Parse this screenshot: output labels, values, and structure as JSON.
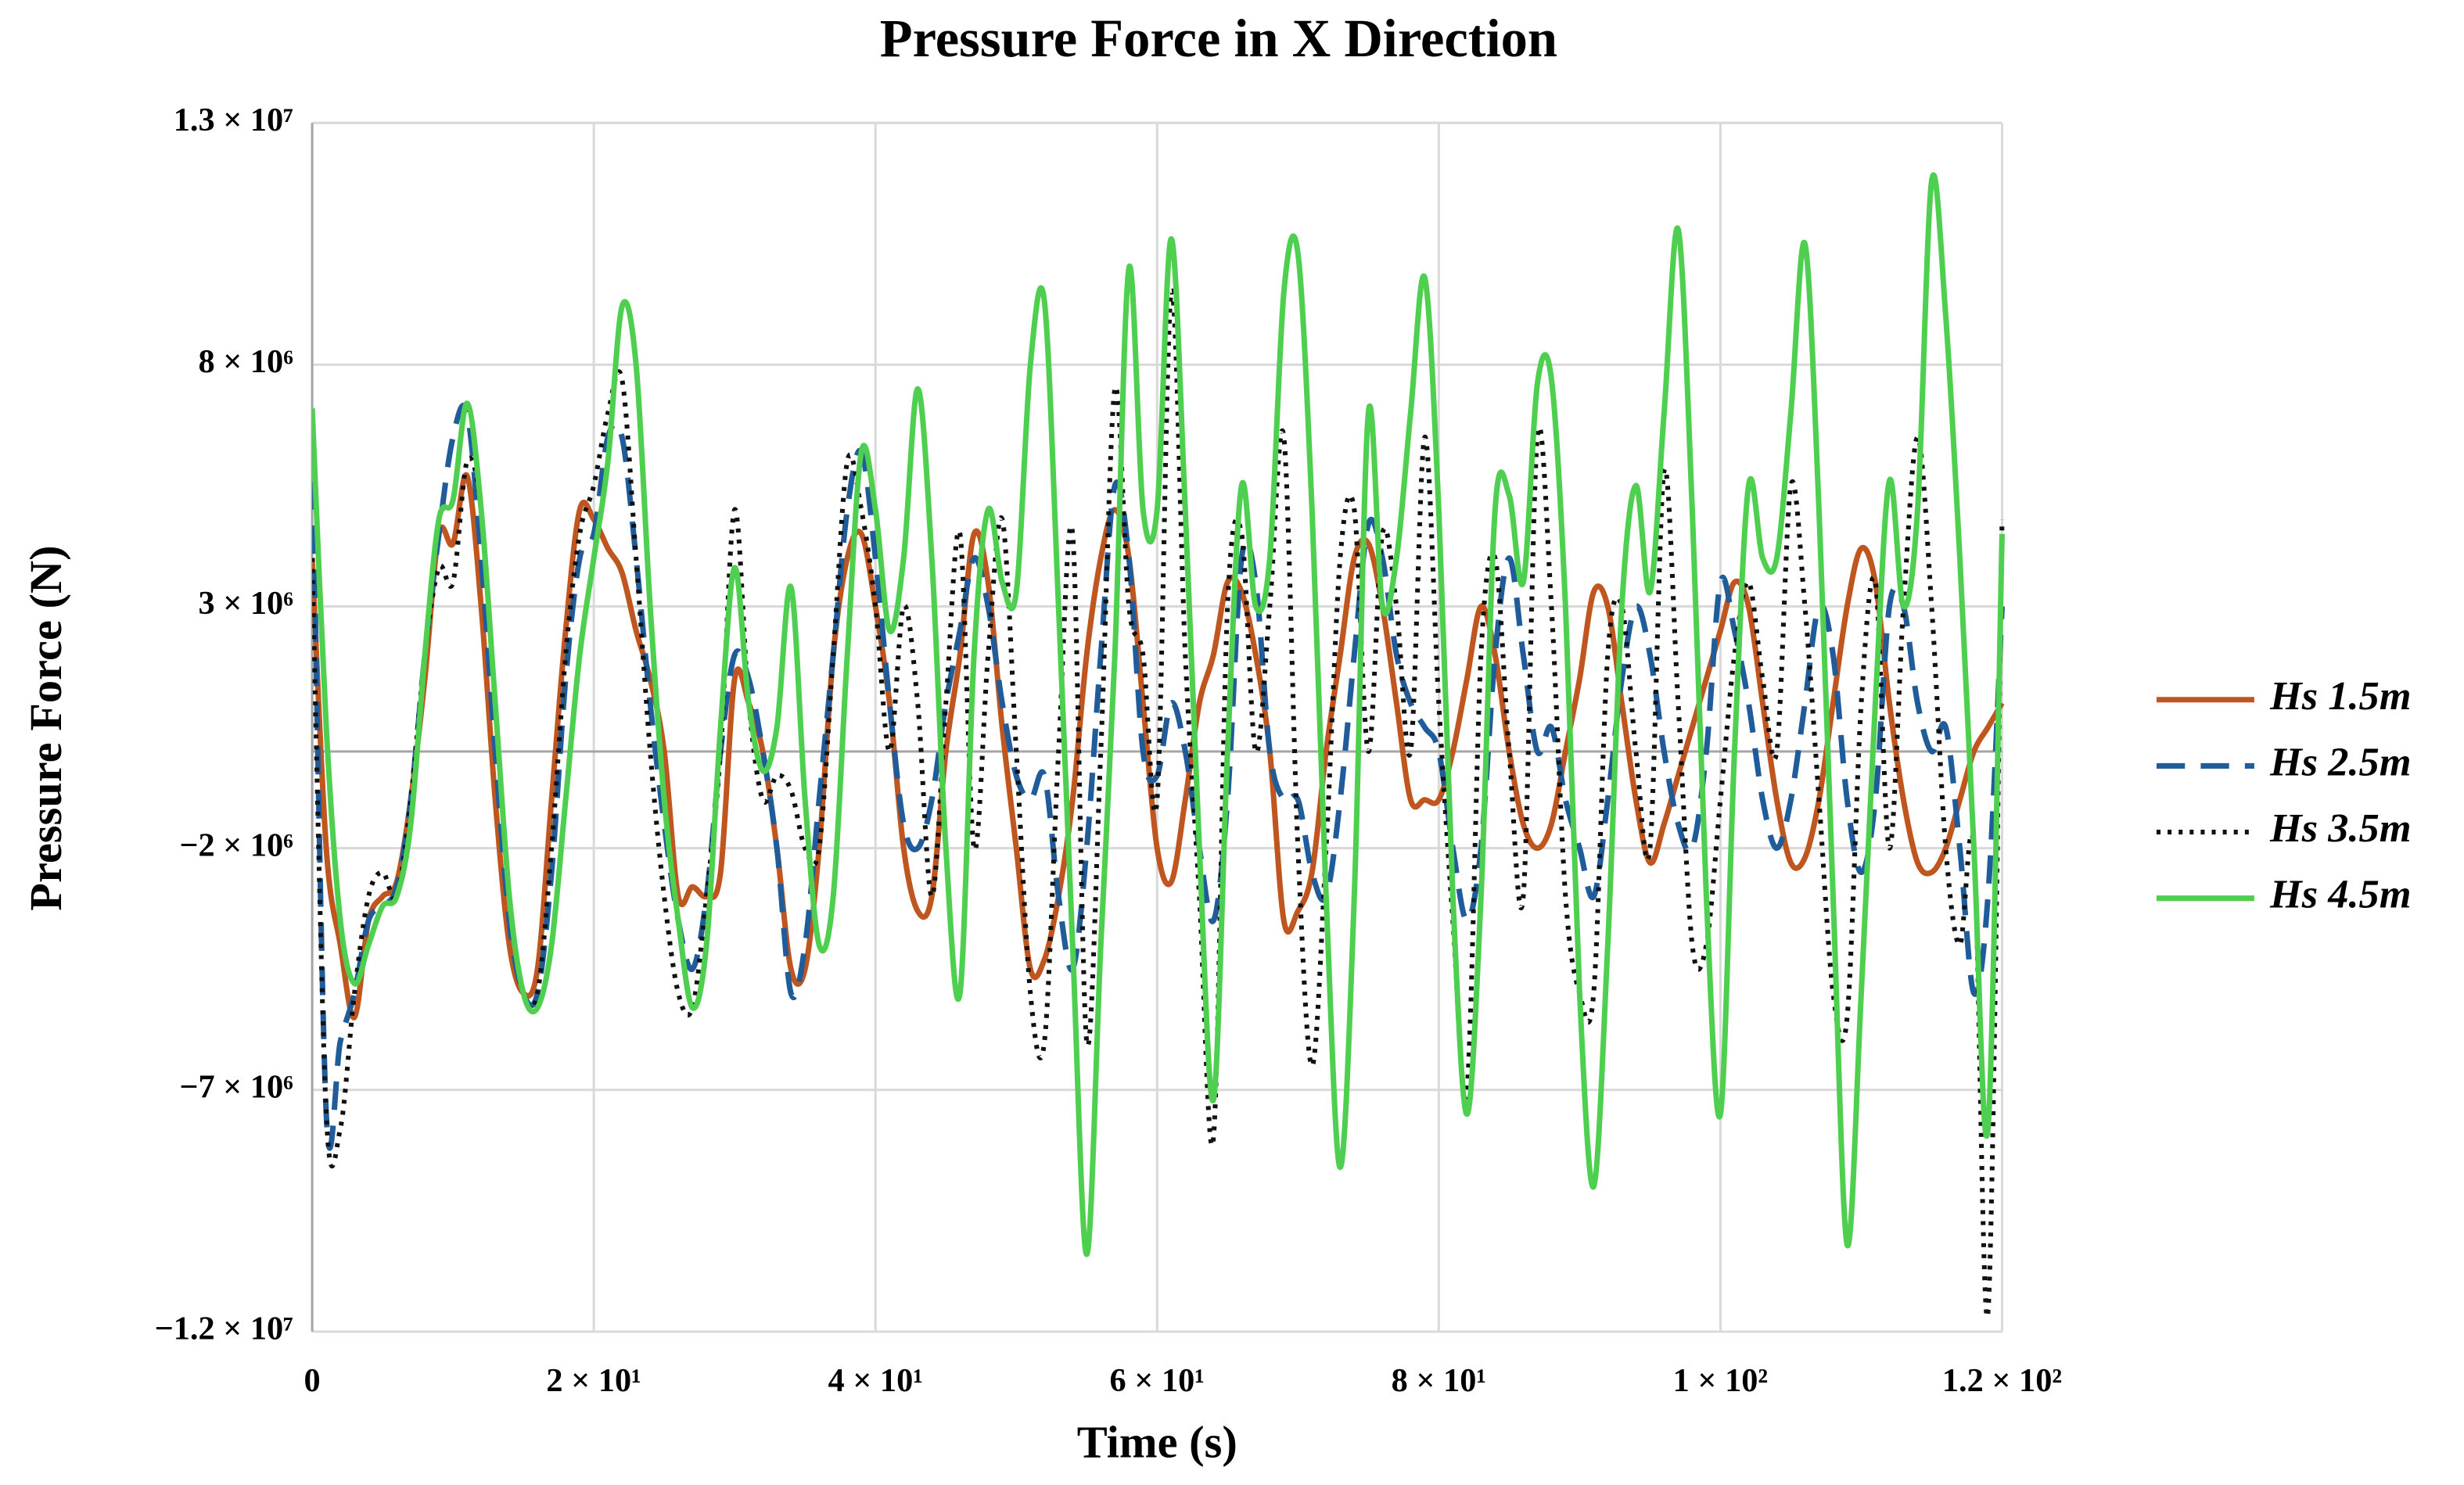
{
  "chart_data": {
    "type": "line",
    "title": "Pressure Force in X Direction",
    "x_label": "Time (s)",
    "y_label": "Pressure Force (N)",
    "xlim": [
      0,
      120
    ],
    "ylim": [
      -12000000,
      13000000
    ],
    "xticks": [
      0,
      {
        "value": 20,
        "label": "2 × 10¹"
      },
      {
        "value": 40,
        "label": "4 × 10¹"
      },
      {
        "value": 60,
        "label": "6 × 10¹"
      },
      {
        "value": 80,
        "label": "8 × 10¹"
      },
      {
        "value": 100,
        "label": "1 × 10²"
      },
      {
        "value": 120,
        "label": "1.2 × 10²"
      }
    ],
    "yticks": [
      {
        "value": -12000000,
        "label": "−1.2 × 10⁷"
      },
      {
        "value": -7000000,
        "label": "−7 × 10⁶"
      },
      {
        "value": -2000000,
        "label": "−2 × 10⁶"
      },
      {
        "value": 3000000,
        "label": "3 × 10⁶"
      },
      {
        "value": 8000000,
        "label": "8 × 10⁶"
      },
      {
        "value": 13000000,
        "label": "1.3 × 10⁷"
      }
    ],
    "grid": true,
    "legend": "right",
    "x": [
      0,
      1,
      2,
      3,
      4,
      5,
      6,
      7,
      8,
      9,
      10,
      11,
      12,
      13,
      14,
      15,
      16,
      17,
      18,
      19,
      20,
      21,
      22,
      23,
      24,
      25,
      26,
      27,
      28,
      29,
      30,
      31,
      32,
      33,
      34,
      35,
      36,
      37,
      38,
      39,
      40,
      41,
      42,
      43,
      44,
      45,
      46,
      47,
      48,
      49,
      50,
      51,
      52,
      53,
      54,
      55,
      56,
      57,
      58,
      59,
      60,
      61,
      62,
      63,
      64,
      65,
      66,
      67,
      68,
      69,
      70,
      71,
      72,
      73,
      74,
      75,
      76,
      77,
      78,
      79,
      80,
      81,
      82,
      83,
      84,
      85,
      86,
      87,
      88,
      89,
      90,
      91,
      92,
      93,
      94,
      95,
      96,
      97,
      98,
      99,
      100,
      101,
      102,
      103,
      104,
      105,
      106,
      107,
      108,
      109,
      110,
      111,
      112,
      113,
      114,
      115,
      116,
      117,
      118,
      119,
      120
    ],
    "series": [
      {
        "name": "Hs 1.5m",
        "color": "#c0561f",
        "dash": "solid",
        "values": [
          4000000.0,
          -2000000.0,
          -4000000.0,
          -5500000.0,
          -3500000.0,
          -3000000.0,
          -2700000.0,
          -1000000.0,
          1500000.0,
          4500000.0,
          4300000.0,
          5700000.0,
          3000000.0,
          -1000000.0,
          -4000000.0,
          -5000000.0,
          -4500000.0,
          -1000000.0,
          2500000.0,
          5000000.0,
          4800000.0,
          4200000.0,
          3700000.0,
          2500000.0,
          1500000.0,
          0,
          -3000000.0,
          -2800000.0,
          -3000000.0,
          -2500000.0,
          1500000.0,
          1000000.0,
          0,
          -2000000.0,
          -4500000.0,
          -4500000.0,
          -2000000.0,
          2000000.0,
          4000000.0,
          4500000.0,
          3000000.0,
          1000000.0,
          -2000000.0,
          -3300000.0,
          -3000000.0,
          0,
          2000000.0,
          4500000.0,
          3500000.0,
          500000.0,
          -2000000.0,
          -4500000.0,
          -4300000.0,
          -3000000.0,
          -1000000.0,
          2000000.0,
          4000000.0,
          5000000.0,
          4000000.0,
          1000000.0,
          -2000000.0,
          -2700000.0,
          -1000000.0,
          1000000.0,
          2000000.0,
          3500000.0,
          3300000.0,
          2000000.0,
          0,
          -3500000.0,
          -3300000.0,
          -2500000.0,
          0,
          2000000.0,
          4000000.0,
          4300000.0,
          3000000.0,
          1000000.0,
          -1000000.0,
          -1000000.0,
          -1000000.0,
          0,
          1500000.0,
          3000000.0,
          2000000.0,
          0,
          -1500000.0,
          -2000000.0,
          -1500000.0,
          0,
          1500000.0,
          3300000.0,
          3000000.0,
          1000000.0,
          -1000000.0,
          -2300000.0,
          -1500000.0,
          -500000.0,
          500000.0,
          1500000.0,
          2500000.0,
          3500000.0,
          3000000.0,
          1000000.0,
          -1000000.0,
          -2300000.0,
          -2200000.0,
          -1000000.0,
          1000000.0,
          3000000.0,
          4200000.0,
          3500000.0,
          1000000.0,
          -1000000.0,
          -2300000.0,
          -2500000.0,
          -2000000.0,
          -1000000.0,
          0,
          500000.0,
          1000000.0
        ]
      },
      {
        "name": "Hs 2.5m",
        "color": "#1f5c99",
        "dash": "dashed",
        "values": [
          6500000.0,
          -7500000.0,
          -6000000.0,
          -5000000.0,
          -3500000.0,
          -3200000.0,
          -2800000.0,
          -1000000.0,
          2000000.0,
          4500000.0,
          6500000.0,
          7000000.0,
          4000000.0,
          0,
          -3500000.0,
          -5000000.0,
          -5000000.0,
          -2500000.0,
          1500000.0,
          4000000.0,
          4500000.0,
          6500000.0,
          6500000.0,
          4000000.0,
          1000000.0,
          -1500000.0,
          -3500000.0,
          -4500000.0,
          -3000000.0,
          0,
          2000000.0,
          1500000.0,
          0,
          -2000000.0,
          -5000000.0,
          -4000000.0,
          -1000000.0,
          2000000.0,
          5000000.0,
          6200000.0,
          4000000.0,
          1000000.0,
          -1500000.0,
          -2000000.0,
          -1000000.0,
          1000000.0,
          2500000.0,
          4000000.0,
          3000000.0,
          1000000.0,
          -500000.0,
          -1000000.0,
          -500000.0,
          -3000000.0,
          -4500000.0,
          -2000000.0,
          2000000.0,
          5500000.0,
          4000000.0,
          0,
          -500000.0,
          1000000.0,
          0,
          -2000000.0,
          -3500000.0,
          -1000000.0,
          4000000.0,
          3500000.0,
          0,
          -1000000.0,
          -1000000.0,
          -2500000.0,
          -3000000.0,
          -1000000.0,
          2000000.0,
          4700000.0,
          4000000.0,
          2000000.0,
          1000000.0,
          500000.0,
          0,
          -2000000.0,
          -3500000.0,
          -2000000.0,
          2000000.0,
          4000000.0,
          2000000.0,
          0,
          500000.0,
          -1000000.0,
          -2000000.0,
          -3000000.0,
          -1000000.0,
          1500000.0,
          3000000.0,
          2000000.0,
          0,
          -1500000.0,
          -2000000.0,
          0,
          3500000.0,
          2500000.0,
          1000000.0,
          -1000000.0,
          -2000000.0,
          -1000000.0,
          1000000.0,
          3000000.0,
          2000000.0,
          -1000000.0,
          -2500000.0,
          -1000000.0,
          3000000.0,
          3000000.0,
          1000000.0,
          0,
          500000.0,
          -2000000.0,
          -5000000.0,
          -3000000.0,
          3000000.0
        ]
      },
      {
        "name": "Hs 3.5m",
        "color": "#111111",
        "dash": "dotted",
        "values": [
          4000000.0,
          -7500000.0,
          -7800000.0,
          -5000000.0,
          -3000000.0,
          -2500000.0,
          -3000000.0,
          -1000000.0,
          2000000.0,
          3800000.0,
          3500000.0,
          6000000.0,
          5000000.0,
          1000000.0,
          -3000000.0,
          -5000000.0,
          -5000000.0,
          -2000000.0,
          2000000.0,
          4500000.0,
          5500000.0,
          7000000.0,
          7700000.0,
          4000000.0,
          0,
          -3000000.0,
          -5000000.0,
          -5300000.0,
          -3000000.0,
          0,
          5000000.0,
          1000000.0,
          -1000000.0,
          -500000.0,
          -800000.0,
          -2000000.0,
          -2000000.0,
          2000000.0,
          6000000.0,
          5000000.0,
          3000000.0,
          0,
          3000000.0,
          1000000.0,
          -3000000.0,
          1000000.0,
          4500000.0,
          -2000000.0,
          2000000.0,
          4800000.0,
          0,
          -5000000.0,
          -6000000.0,
          0,
          4500000.0,
          -6000000.0,
          0,
          7500000.0,
          3000000.0,
          2000000.0,
          -1000000.0,
          9500000.0,
          2000000.0,
          -3000000.0,
          -8000000.0,
          3000000.0,
          4500000.0,
          0,
          3000000.0,
          6500000.0,
          -2000000.0,
          -6500000.0,
          -2000000.0,
          4000000.0,
          5000000.0,
          0,
          4500000.0,
          3000000.0,
          0,
          6500000.0,
          1000000.0,
          -3500000.0,
          -7000000.0,
          2000000.0,
          4000000.0,
          0,
          -3000000.0,
          6500000.0,
          3000000.0,
          -3000000.0,
          -5000000.0,
          -5000000.0,
          2000000.0,
          3000000.0,
          0,
          -2000000.0,
          5800000.0,
          1000000.0,
          -4000000.0,
          -4000000.0,
          -1000000.0,
          2000000.0,
          3500000.0,
          1500000.0,
          0,
          5500000.0,
          3000000.0,
          -1000000.0,
          -5000000.0,
          -5500000.0,
          1000000.0,
          3500000.0,
          -2000000.0,
          3000000.0,
          6500000.0,
          3000000.0,
          -2000000.0,
          -4000000.0,
          -2000000.0,
          -11600000.0,
          4800000.0
        ]
      },
      {
        "name": "Hs 4.5m",
        "color": "#4fcf50",
        "dash": "solid",
        "values": [
          7100000.0,
          500000.0,
          -3500000.0,
          -4800000.0,
          -4000000.0,
          -3200000.0,
          -3000000.0,
          -1500000.0,
          2000000.0,
          4800000.0,
          5200000.0,
          7200000.0,
          5000000.0,
          1000000.0,
          -3000000.0,
          -5000000.0,
          -5300000.0,
          -4000000.0,
          -1000000.0,
          2000000.0,
          4000000.0,
          6000000.0,
          9200000.0,
          8000000.0,
          3000000.0,
          -1000000.0,
          -3500000.0,
          -5300000.0,
          -4000000.0,
          500000.0,
          3800000.0,
          1000000.0,
          -400000.0,
          500000.0,
          3400000.0,
          -1000000.0,
          -4000000.0,
          -3000000.0,
          2000000.0,
          6200000.0,
          5000000.0,
          2500000.0,
          4000000.0,
          7500000.0,
          4000000.0,
          -2000000.0,
          -5000000.0,
          2000000.0,
          5000000.0,
          3500000.0,
          3300000.0,
          8000000.0,
          9300000.0,
          3000000.0,
          -4000000.0,
          -10400000.0,
          -4000000.0,
          2000000.0,
          10000000.0,
          5000000.0,
          5000000.0,
          10600000.0,
          5000000.0,
          -2000000.0,
          -7200000.0,
          0,
          5500000.0,
          3000000.0,
          4000000.0,
          9500000.0,
          10300000.0,
          5000000.0,
          -3000000.0,
          -8600000.0,
          -3000000.0,
          7000000.0,
          3000000.0,
          4000000.0,
          7000000.0,
          9800000.0,
          5000000.0,
          -3000000.0,
          -7500000.0,
          -3000000.0,
          5000000.0,
          5300000.0,
          3500000.0,
          7600000.0,
          7700000.0,
          3000000.0,
          -5000000.0,
          -9000000.0,
          -4000000.0,
          3000000.0,
          5500000.0,
          3300000.0,
          7000000.0,
          10800000.0,
          5000000.0,
          -3000000.0,
          -7500000.0,
          0,
          5500000.0,
          4000000.0,
          4000000.0,
          7000000.0,
          10500000.0,
          5000000.0,
          -3000000.0,
          -10200000.0,
          -5000000.0,
          1000000.0,
          5600000.0,
          3000000.0,
          5000000.0,
          11800000.0,
          9000000.0,
          4000000.0,
          -2000000.0,
          -7800000.0,
          4500000.0
        ]
      }
    ]
  }
}
